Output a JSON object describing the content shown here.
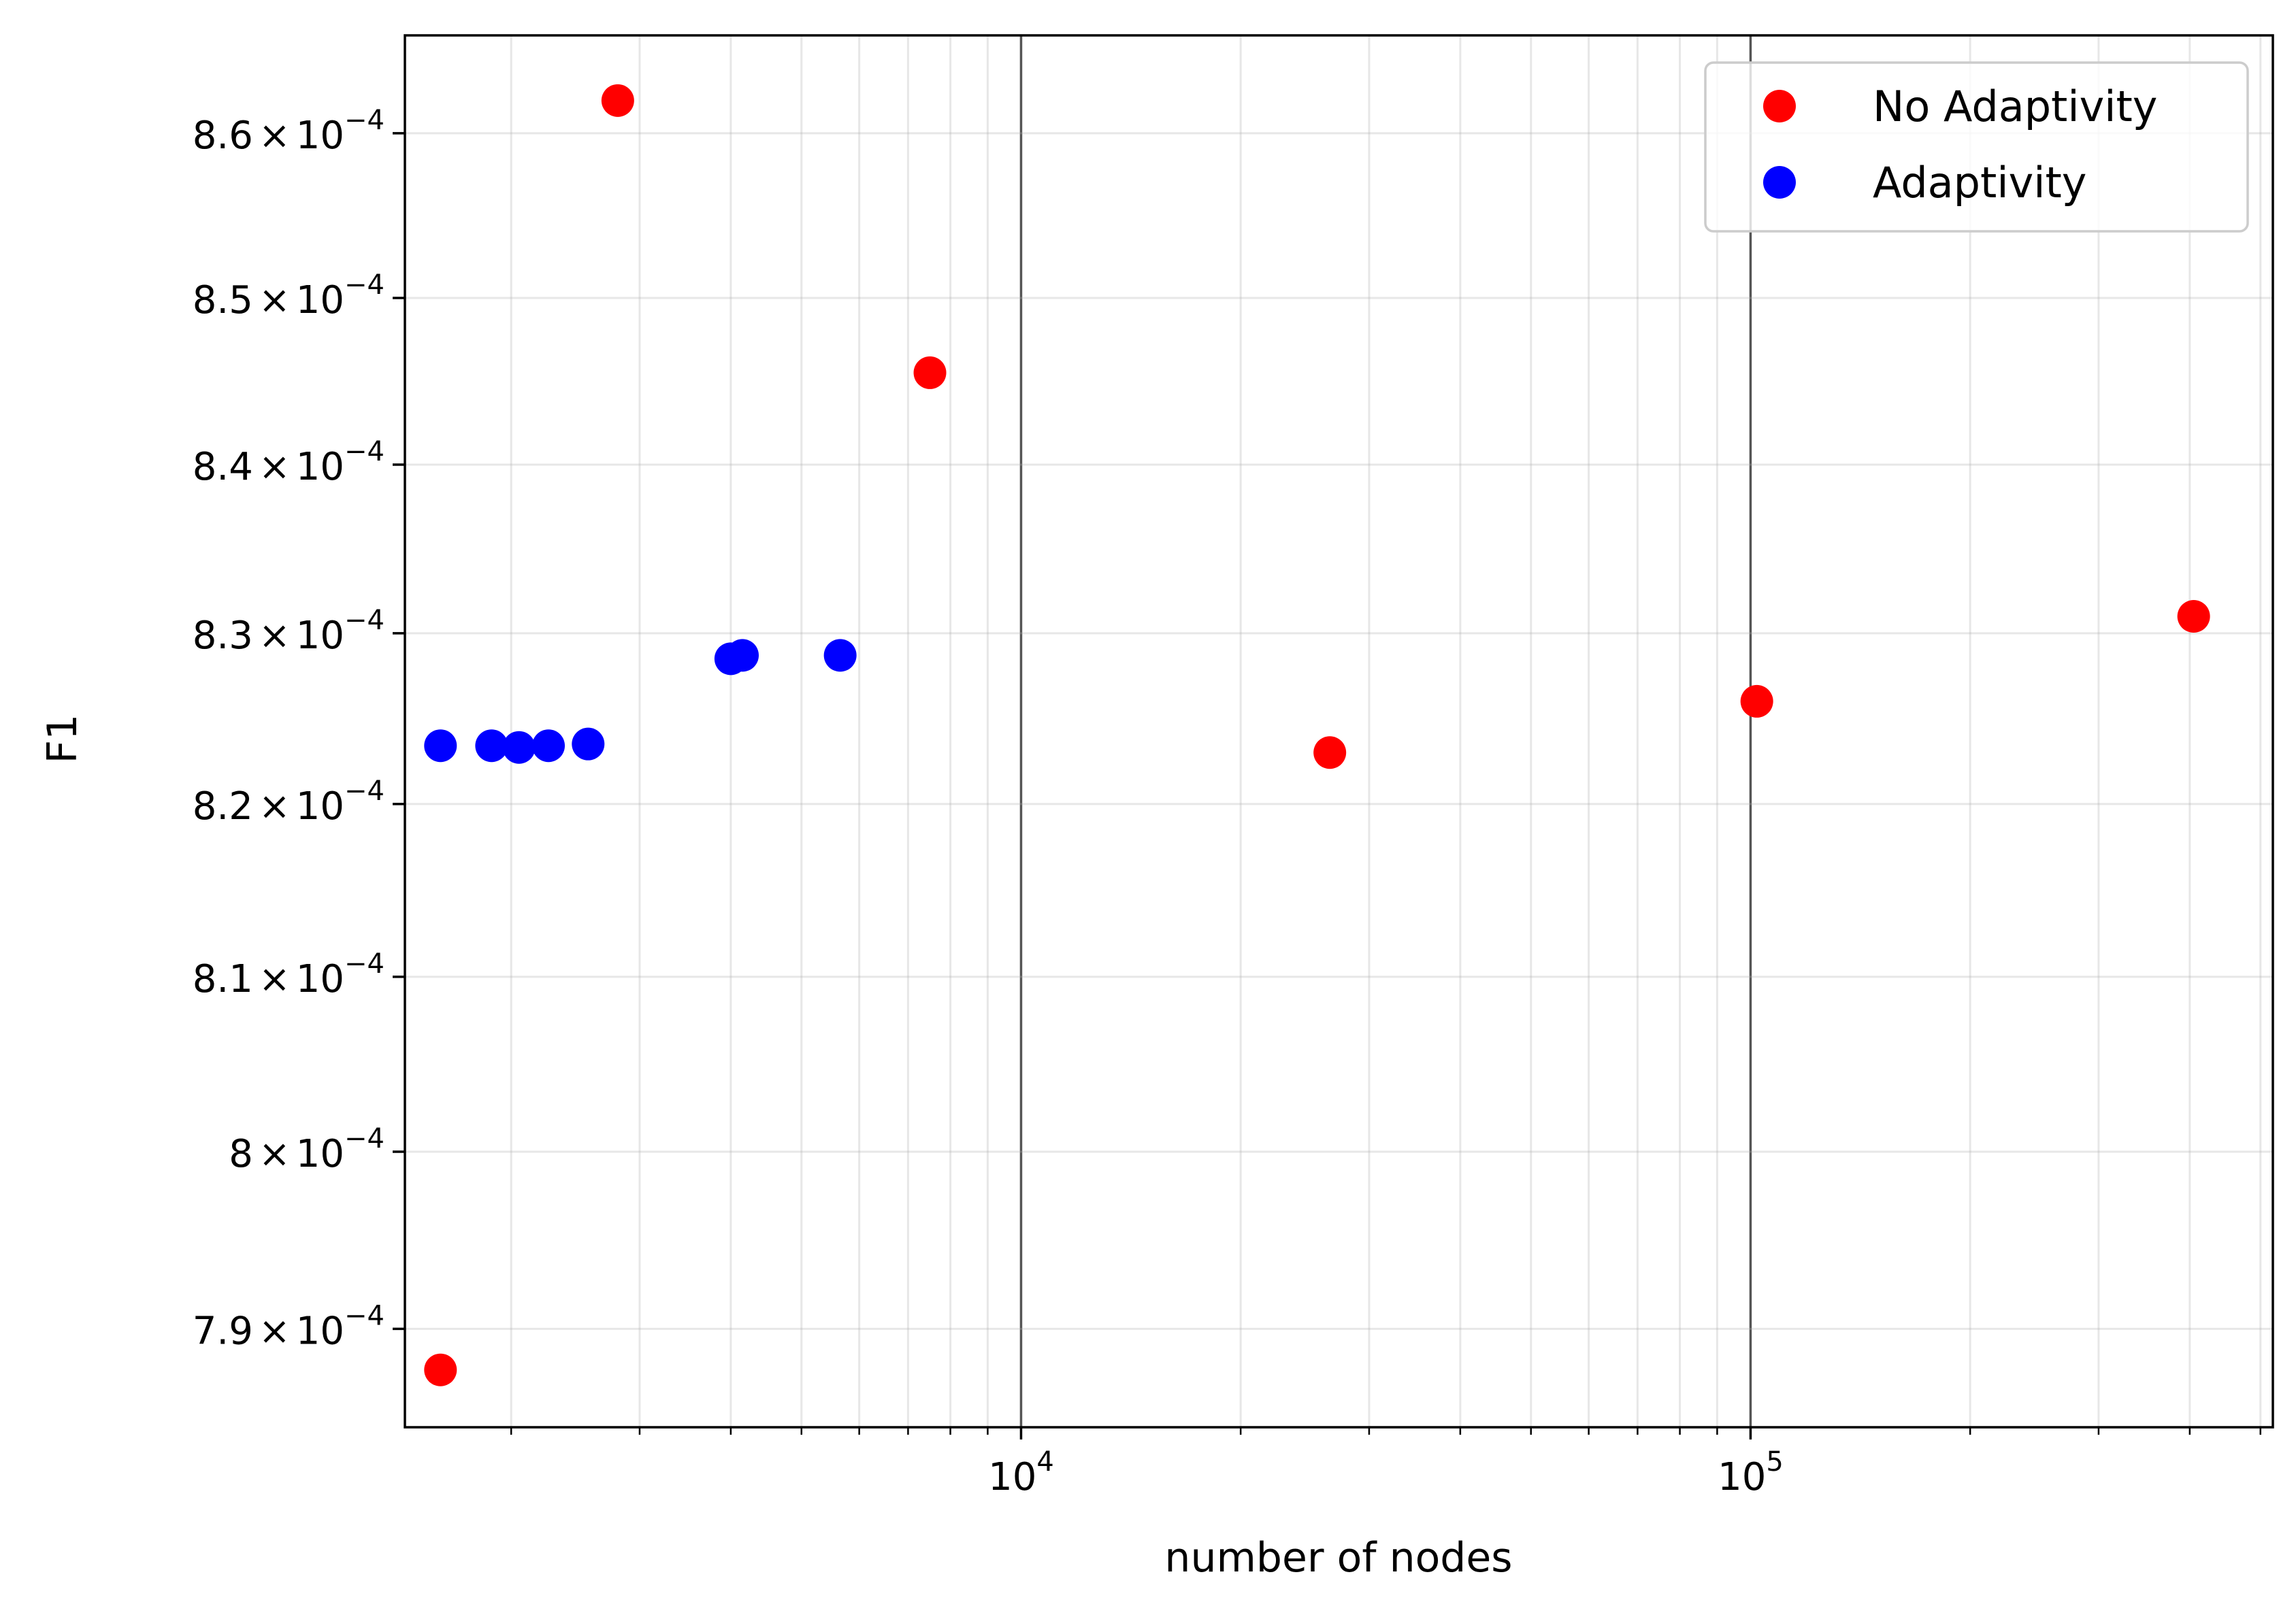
{
  "chart_data": {
    "type": "scatter",
    "xlabel": "number of nodes",
    "ylabel": "F1",
    "xscale": "log",
    "yscale": "log",
    "xlim": [
      1430,
      520000
    ],
    "ylim": [
      0.0007845,
      0.000866
    ],
    "grid": true,
    "legend_position": "top-right",
    "x_major_ticks": [
      {
        "value": 10000,
        "base": "10",
        "exp": "4"
      },
      {
        "value": 100000,
        "base": "10",
        "exp": "5"
      }
    ],
    "y_ticks": [
      {
        "value": 0.00079,
        "mantissa": "7.9",
        "times": "×",
        "base": "10",
        "exp": "−4"
      },
      {
        "value": 0.0008,
        "mantissa": "8",
        "times": "×",
        "base": "10",
        "exp": "−4"
      },
      {
        "value": 0.00081,
        "mantissa": "8.1",
        "times": "×",
        "base": "10",
        "exp": "−4"
      },
      {
        "value": 0.00082,
        "mantissa": "8.2",
        "times": "×",
        "base": "10",
        "exp": "−4"
      },
      {
        "value": 0.00083,
        "mantissa": "8.3",
        "times": "×",
        "base": "10",
        "exp": "−4"
      },
      {
        "value": 0.00084,
        "mantissa": "8.4",
        "times": "×",
        "base": "10",
        "exp": "−4"
      },
      {
        "value": 0.00085,
        "mantissa": "8.5",
        "times": "×",
        "base": "10",
        "exp": "−4"
      },
      {
        "value": 0.00086,
        "mantissa": "8.6",
        "times": "×",
        "base": "10",
        "exp": "−4"
      }
    ],
    "series": [
      {
        "name": "No Adaptivity",
        "color": "#ff0000",
        "points": [
          {
            "x": 1600,
            "y": 0.0007877
          },
          {
            "x": 2800,
            "y": 0.000862
          },
          {
            "x": 7500,
            "y": 0.0008455
          },
          {
            "x": 26500,
            "y": 0.000823
          },
          {
            "x": 102000,
            "y": 0.000826
          },
          {
            "x": 405000,
            "y": 0.000831
          }
        ]
      },
      {
        "name": "Adaptivity",
        "color": "#0000ff",
        "points": [
          {
            "x": 1600,
            "y": 0.0008234
          },
          {
            "x": 1880,
            "y": 0.0008234
          },
          {
            "x": 2050,
            "y": 0.0008233
          },
          {
            "x": 2250,
            "y": 0.0008234
          },
          {
            "x": 2550,
            "y": 0.0008235
          },
          {
            "x": 4000,
            "y": 0.0008285
          },
          {
            "x": 4150,
            "y": 0.0008287
          },
          {
            "x": 5650,
            "y": 0.0008287
          }
        ]
      }
    ]
  }
}
